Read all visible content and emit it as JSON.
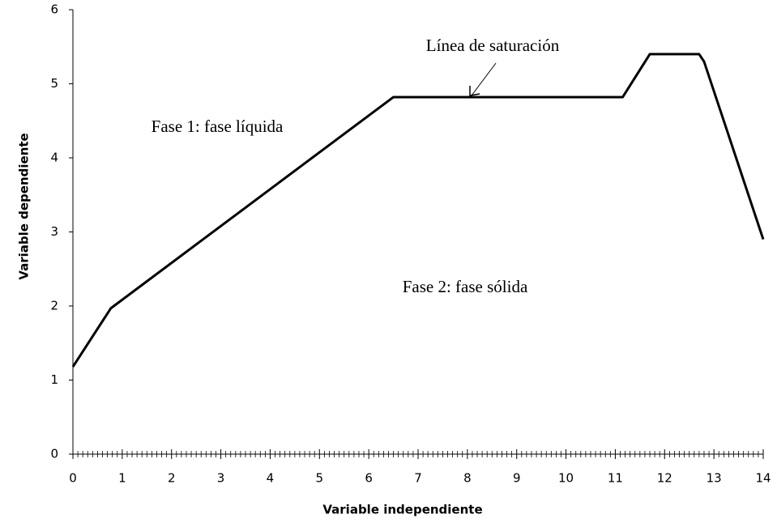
{
  "chart_data": {
    "type": "line",
    "x_label": "Variable independiente",
    "y_label": "Variable dependiente",
    "annotations": [
      "Línea de saturación",
      "Fase 1: fase líquida",
      "Fase 2: fase sólida"
    ],
    "series": [
      {
        "color": "#000000",
        "x": [
          0,
          0.77,
          6.5,
          11.15,
          11.7,
          12.7,
          12.8,
          14
        ],
        "values": [
          1.18,
          1.97,
          4.82,
          4.82,
          5.4,
          5.4,
          5.3,
          2.9
        ]
      }
    ],
    "xlim": [
      0,
      14
    ],
    "xticks": [
      0,
      1,
      2,
      3,
      4,
      5,
      6,
      7,
      8,
      9,
      10,
      11,
      12,
      13,
      14
    ],
    "ylim": [
      0,
      6
    ],
    "yticks": [
      0,
      1,
      2,
      3,
      4,
      5,
      6
    ],
    "grid": false
  }
}
